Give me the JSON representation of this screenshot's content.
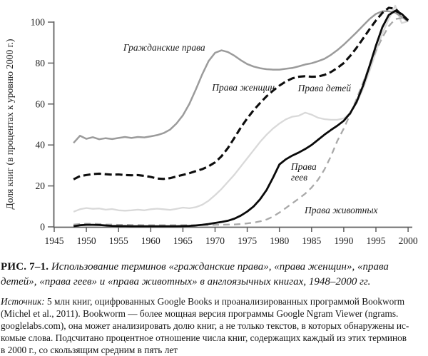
{
  "caption": {
    "label": "РИС. 7–1.",
    "line1_rest": "Использование терминов «гражданские права», «права женщин», «права",
    "line2": "детей», «права геев» и «права животных» в англоязычных книгах, 1948–2000 гг."
  },
  "source": {
    "label": "Источник:",
    "line1_rest": "5 млн книг, оцифрованных Google Books и проанализированных программой Bookworm",
    "lines": [
      "(Michel et al., 2011). Bookworm — более мощная версия программы Google Ngram Viewer (ngrams.",
      "googlelabs.com), она может анализировать долю книг, а не только текстов, в которых обнаружены ис-",
      "комые слова. Подсчитано процентное отношение числа книг, содержащих каждый из этих терминов",
      "в 2000 г., со скользящим средним в пять лет"
    ]
  },
  "chart_data": {
    "type": "line",
    "title": "",
    "xlabel": "",
    "ylabel": "Доля книг (в процентах к уровню 2000 г.)",
    "x_ticks": [
      1945,
      1950,
      1955,
      1960,
      1965,
      1970,
      1975,
      1980,
      1985,
      1990,
      1995,
      2000
    ],
    "y_ticks": [
      0,
      20,
      40,
      60,
      80,
      100
    ],
    "xlim": [
      1945,
      2000.7
    ],
    "ylim": [
      0,
      110
    ],
    "grid": false,
    "legend_position": "inline-labels",
    "axis_color": "#606060",
    "tick_label_color": "#1c1c1c",
    "series": [
      {
        "id": "childrens-rights",
        "name": "Права детей",
        "color": "#d9d9d9",
        "dash": "",
        "width": 2.3,
        "points": [
          [
            1948,
            7.4
          ],
          [
            1949,
            8.6
          ],
          [
            1950,
            9.2
          ],
          [
            1951,
            8.8
          ],
          [
            1952,
            9.0
          ],
          [
            1953,
            8.4
          ],
          [
            1954,
            8.7
          ],
          [
            1955,
            8.1
          ],
          [
            1956,
            7.9
          ],
          [
            1957,
            8.1
          ],
          [
            1958,
            8.4
          ],
          [
            1959,
            8.1
          ],
          [
            1960,
            8.6
          ],
          [
            1961,
            8.9
          ],
          [
            1962,
            8.6
          ],
          [
            1963,
            8.3
          ],
          [
            1964,
            8.8
          ],
          [
            1965,
            9.4
          ],
          [
            1966,
            9.1
          ],
          [
            1967,
            9.6
          ],
          [
            1968,
            10.8
          ],
          [
            1969,
            12.8
          ],
          [
            1970,
            15.5
          ],
          [
            1971,
            18.5
          ],
          [
            1972,
            22.0
          ],
          [
            1973,
            25.5
          ],
          [
            1974,
            29.5
          ],
          [
            1975,
            33.5
          ],
          [
            1976,
            37.5
          ],
          [
            1977,
            41.5
          ],
          [
            1978,
            45.0
          ],
          [
            1979,
            48.0
          ],
          [
            1980,
            50.5
          ],
          [
            1981,
            52.5
          ],
          [
            1982,
            53.8
          ],
          [
            1983,
            54.3
          ],
          [
            1984,
            55.8
          ],
          [
            1985,
            54.8
          ],
          [
            1986,
            53.3
          ],
          [
            1987,
            52.6
          ],
          [
            1988,
            52.3
          ],
          [
            1989,
            52.3
          ],
          [
            1990,
            53.0
          ],
          [
            1991,
            55.5
          ],
          [
            1992,
            60.5
          ],
          [
            1993,
            67.5
          ],
          [
            1994,
            76.0
          ],
          [
            1995,
            85.5
          ],
          [
            1996,
            94.5
          ],
          [
            1997,
            101.5
          ],
          [
            1998,
            108.0
          ],
          [
            1999,
            99.5
          ],
          [
            2000,
            100.5
          ]
        ]
      },
      {
        "id": "civil-rights",
        "name": "Гражданские права",
        "color": "#9b9b9b",
        "dash": "",
        "width": 2.5,
        "points": [
          [
            1948,
            41.0
          ],
          [
            1949,
            44.5
          ],
          [
            1950,
            43.0
          ],
          [
            1951,
            43.8
          ],
          [
            1952,
            42.8
          ],
          [
            1953,
            43.3
          ],
          [
            1954,
            42.9
          ],
          [
            1955,
            43.4
          ],
          [
            1956,
            43.9
          ],
          [
            1957,
            43.4
          ],
          [
            1958,
            43.9
          ],
          [
            1959,
            43.7
          ],
          [
            1960,
            44.2
          ],
          [
            1961,
            44.8
          ],
          [
            1962,
            45.8
          ],
          [
            1963,
            47.5
          ],
          [
            1964,
            50.5
          ],
          [
            1965,
            54.5
          ],
          [
            1966,
            60.0
          ],
          [
            1967,
            67.0
          ],
          [
            1968,
            74.5
          ],
          [
            1969,
            81.0
          ],
          [
            1970,
            85.0
          ],
          [
            1971,
            86.2
          ],
          [
            1972,
            85.4
          ],
          [
            1973,
            83.6
          ],
          [
            1974,
            81.4
          ],
          [
            1975,
            79.5
          ],
          [
            1976,
            78.3
          ],
          [
            1977,
            77.5
          ],
          [
            1978,
            77.0
          ],
          [
            1979,
            76.8
          ],
          [
            1980,
            76.8
          ],
          [
            1981,
            77.2
          ],
          [
            1982,
            77.6
          ],
          [
            1983,
            78.4
          ],
          [
            1984,
            79.3
          ],
          [
            1985,
            79.9
          ],
          [
            1986,
            80.9
          ],
          [
            1987,
            82.1
          ],
          [
            1988,
            84.0
          ],
          [
            1989,
            86.3
          ],
          [
            1990,
            89.0
          ],
          [
            1991,
            92.0
          ],
          [
            1992,
            95.0
          ],
          [
            1993,
            98.3
          ],
          [
            1994,
            101.5
          ],
          [
            1995,
            104.0
          ],
          [
            1996,
            105.3
          ],
          [
            1997,
            105.3
          ],
          [
            1998,
            104.6
          ],
          [
            1999,
            102.6
          ],
          [
            2000,
            100.3
          ]
        ]
      },
      {
        "id": "animal-rights",
        "name": "Права животных",
        "color": "#a9a9a9",
        "dash": "9 6",
        "width": 2.3,
        "points": [
          [
            1948,
            1.1
          ],
          [
            1949,
            1.4
          ],
          [
            1950,
            1.5
          ],
          [
            1951,
            1.5
          ],
          [
            1952,
            1.4
          ],
          [
            1953,
            1.2
          ],
          [
            1954,
            1.1
          ],
          [
            1955,
            1.0
          ],
          [
            1956,
            1.0
          ],
          [
            1957,
            0.9
          ],
          [
            1958,
            0.9
          ],
          [
            1959,
            0.8
          ],
          [
            1960,
            0.8
          ],
          [
            1961,
            0.8
          ],
          [
            1962,
            0.8
          ],
          [
            1963,
            0.8
          ],
          [
            1964,
            0.8
          ],
          [
            1965,
            0.8
          ],
          [
            1966,
            0.8
          ],
          [
            1967,
            0.8
          ],
          [
            1968,
            0.9
          ],
          [
            1969,
            0.9
          ],
          [
            1970,
            1.0
          ],
          [
            1971,
            1.0
          ],
          [
            1972,
            1.1
          ],
          [
            1973,
            1.2
          ],
          [
            1974,
            1.4
          ],
          [
            1975,
            1.7
          ],
          [
            1976,
            2.1
          ],
          [
            1977,
            2.7
          ],
          [
            1978,
            3.6
          ],
          [
            1979,
            5.0
          ],
          [
            1980,
            7.0
          ],
          [
            1981,
            9.2
          ],
          [
            1982,
            11.5
          ],
          [
            1983,
            13.8
          ],
          [
            1984,
            16.2
          ],
          [
            1985,
            19.2
          ],
          [
            1986,
            23.0
          ],
          [
            1987,
            28.0
          ],
          [
            1988,
            34.5
          ],
          [
            1989,
            42.0
          ],
          [
            1990,
            48.0
          ],
          [
            1991,
            55.0
          ],
          [
            1992,
            62.5
          ],
          [
            1993,
            70.5
          ],
          [
            1994,
            78.5
          ],
          [
            1995,
            86.0
          ],
          [
            1996,
            92.5
          ],
          [
            1997,
            98.0
          ],
          [
            1998,
            101.5
          ],
          [
            1999,
            102.0
          ],
          [
            2000,
            100.5
          ]
        ]
      },
      {
        "id": "womens-rights",
        "name": "Права женщин",
        "color": "#0d0d0d",
        "dash": "10 5",
        "width": 3.1,
        "points": [
          [
            1948,
            23.2
          ],
          [
            1949,
            24.8
          ],
          [
            1950,
            25.3
          ],
          [
            1951,
            25.8
          ],
          [
            1952,
            26.0
          ],
          [
            1953,
            25.7
          ],
          [
            1954,
            25.5
          ],
          [
            1955,
            25.6
          ],
          [
            1956,
            25.3
          ],
          [
            1957,
            25.2
          ],
          [
            1958,
            25.3
          ],
          [
            1959,
            24.9
          ],
          [
            1960,
            24.4
          ],
          [
            1961,
            23.6
          ],
          [
            1962,
            23.4
          ],
          [
            1963,
            23.8
          ],
          [
            1964,
            24.6
          ],
          [
            1965,
            25.4
          ],
          [
            1966,
            26.2
          ],
          [
            1967,
            27.2
          ],
          [
            1968,
            28.2
          ],
          [
            1969,
            29.6
          ],
          [
            1970,
            31.5
          ],
          [
            1971,
            34.5
          ],
          [
            1972,
            38.5
          ],
          [
            1973,
            43.5
          ],
          [
            1974,
            48.5
          ],
          [
            1975,
            53.0
          ],
          [
            1976,
            57.0
          ],
          [
            1977,
            60.5
          ],
          [
            1978,
            63.8
          ],
          [
            1979,
            66.5
          ],
          [
            1980,
            69.0
          ],
          [
            1981,
            71.0
          ],
          [
            1982,
            72.5
          ],
          [
            1983,
            73.3
          ],
          [
            1984,
            73.6
          ],
          [
            1985,
            73.3
          ],
          [
            1986,
            73.4
          ],
          [
            1987,
            74.2
          ],
          [
            1988,
            75.6
          ],
          [
            1989,
            77.6
          ],
          [
            1990,
            80.0
          ],
          [
            1991,
            83.5
          ],
          [
            1992,
            87.5
          ],
          [
            1993,
            92.0
          ],
          [
            1994,
            96.5
          ],
          [
            1995,
            100.8
          ],
          [
            1996,
            104.5
          ],
          [
            1997,
            107.0
          ],
          [
            1998,
            106.5
          ],
          [
            1999,
            103.5
          ],
          [
            2000,
            100.8
          ]
        ]
      },
      {
        "id": "gay-rights",
        "name": "Права геев",
        "color": "#0a0a0a",
        "dash": "",
        "width": 2.8,
        "points": [
          [
            1948,
            0.3
          ],
          [
            1949,
            0.8
          ],
          [
            1950,
            1.0
          ],
          [
            1951,
            1.0
          ],
          [
            1952,
            0.9
          ],
          [
            1953,
            0.7
          ],
          [
            1954,
            0.5
          ],
          [
            1955,
            0.4
          ],
          [
            1956,
            0.4
          ],
          [
            1957,
            0.3
          ],
          [
            1958,
            0.3
          ],
          [
            1959,
            0.3
          ],
          [
            1960,
            0.3
          ],
          [
            1961,
            0.3
          ],
          [
            1962,
            0.3
          ],
          [
            1963,
            0.3
          ],
          [
            1964,
            0.3
          ],
          [
            1965,
            0.4
          ],
          [
            1966,
            0.5
          ],
          [
            1967,
            0.7
          ],
          [
            1968,
            1.0
          ],
          [
            1969,
            1.4
          ],
          [
            1970,
            1.9
          ],
          [
            1971,
            2.4
          ],
          [
            1972,
            3.0
          ],
          [
            1973,
            4.0
          ],
          [
            1974,
            5.5
          ],
          [
            1975,
            7.5
          ],
          [
            1976,
            10.0
          ],
          [
            1977,
            13.5
          ],
          [
            1978,
            18.0
          ],
          [
            1979,
            24.0
          ],
          [
            1980,
            30.5
          ],
          [
            1981,
            33.0
          ],
          [
            1982,
            34.8
          ],
          [
            1983,
            36.3
          ],
          [
            1984,
            38.0
          ],
          [
            1985,
            40.0
          ],
          [
            1986,
            42.5
          ],
          [
            1987,
            45.0
          ],
          [
            1988,
            47.3
          ],
          [
            1989,
            49.4
          ],
          [
            1990,
            51.8
          ],
          [
            1991,
            55.5
          ],
          [
            1992,
            61.0
          ],
          [
            1993,
            69.0
          ],
          [
            1994,
            78.5
          ],
          [
            1995,
            88.5
          ],
          [
            1996,
            97.5
          ],
          [
            1997,
            103.5
          ],
          [
            1998,
            105.5
          ],
          [
            1999,
            104.0
          ],
          [
            2000,
            101.0
          ]
        ]
      }
    ],
    "annotations": [
      {
        "id": "label-civil-rights",
        "text": "Гражданские права",
        "x": 1962.1,
        "y": 86.0,
        "anchor": "middle"
      },
      {
        "id": "label-womens-rights",
        "text": "Права женщин",
        "x": 1974.4,
        "y": 66.6,
        "anchor": "middle"
      },
      {
        "id": "label-childrens-rights",
        "text": "Права детей",
        "x": 1987.0,
        "y": 66.2,
        "anchor": "middle"
      },
      {
        "id": "label-gay-rights-1",
        "text": "Права",
        "x": 1981.8,
        "y": 27.9,
        "anchor": "start"
      },
      {
        "id": "label-gay-rights-2",
        "text": "геев",
        "x": 1981.8,
        "y": 22.6,
        "anchor": "start"
      },
      {
        "id": "label-animal-rights",
        "text": "Права животных",
        "x": 1989.6,
        "y": 6.6,
        "anchor": "middle"
      }
    ]
  }
}
